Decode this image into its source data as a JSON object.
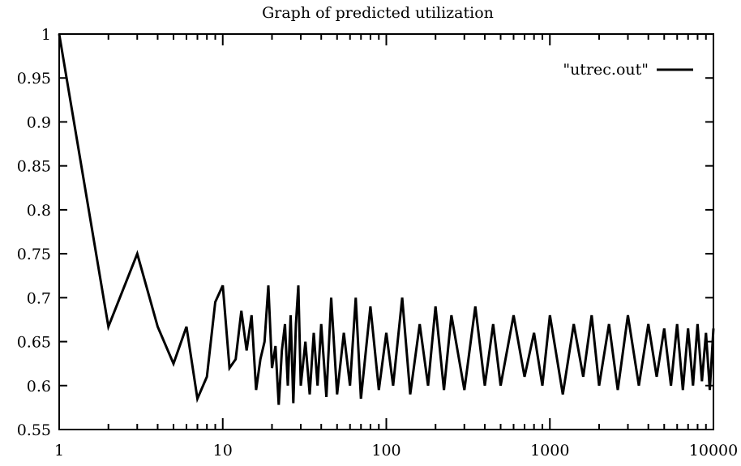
{
  "chart_data": {
    "type": "line",
    "title": "Graph of predicted utilization",
    "xlabel": "",
    "ylabel": "",
    "x_scale": "log",
    "xlim": [
      1,
      10000
    ],
    "ylim": [
      0.55,
      1
    ],
    "x_ticks": [
      1,
      10,
      100,
      1000,
      10000
    ],
    "x_tick_labels": [
      "1",
      "10",
      "100",
      "1000",
      "10000"
    ],
    "y_ticks": [
      0.55,
      0.6,
      0.65,
      0.7,
      0.75,
      0.8,
      0.85,
      0.9,
      0.95,
      1
    ],
    "y_tick_labels": [
      "0.55",
      "0.6",
      "0.65",
      "0.7",
      "0.75",
      "0.8",
      "0.85",
      "0.9",
      "0.95",
      "1"
    ],
    "grid": false,
    "legend_position": "top-right",
    "series": [
      {
        "name": "\"utrec.out\"",
        "color": "#000000",
        "x": [
          1,
          2,
          3,
          4,
          5,
          6,
          7,
          8,
          9,
          10,
          11,
          12,
          13,
          14,
          15,
          16,
          17,
          18,
          19,
          20,
          21,
          22,
          23,
          24,
          25,
          26,
          27,
          28,
          29,
          30,
          32,
          34,
          36,
          38,
          40,
          43,
          46,
          50,
          55,
          60,
          65,
          70,
          80,
          90,
          100,
          110,
          125,
          140,
          160,
          180,
          200,
          225,
          250,
          300,
          350,
          400,
          450,
          500,
          600,
          700,
          800,
          900,
          1000,
          1200,
          1400,
          1600,
          1800,
          2000,
          2300,
          2600,
          3000,
          3500,
          4000,
          4500,
          5000,
          5500,
          6000,
          6500,
          7000,
          7500,
          8000,
          8500,
          9000,
          9500,
          10000
        ],
        "y": [
          1.0,
          0.667,
          0.75,
          0.667,
          0.625,
          0.667,
          0.585,
          0.61,
          0.695,
          0.714,
          0.62,
          0.63,
          0.685,
          0.64,
          0.68,
          0.595,
          0.63,
          0.65,
          0.714,
          0.62,
          0.645,
          0.578,
          0.64,
          0.67,
          0.6,
          0.68,
          0.58,
          0.67,
          0.714,
          0.6,
          0.65,
          0.59,
          0.66,
          0.6,
          0.67,
          0.587,
          0.7,
          0.59,
          0.66,
          0.6,
          0.7,
          0.585,
          0.69,
          0.595,
          0.66,
          0.6,
          0.7,
          0.59,
          0.67,
          0.6,
          0.69,
          0.595,
          0.68,
          0.595,
          0.69,
          0.6,
          0.67,
          0.6,
          0.68,
          0.61,
          0.66,
          0.6,
          0.68,
          0.59,
          0.67,
          0.61,
          0.68,
          0.6,
          0.67,
          0.595,
          0.68,
          0.6,
          0.67,
          0.61,
          0.665,
          0.6,
          0.67,
          0.595,
          0.665,
          0.6,
          0.67,
          0.605,
          0.66,
          0.595,
          0.665
        ]
      }
    ]
  }
}
